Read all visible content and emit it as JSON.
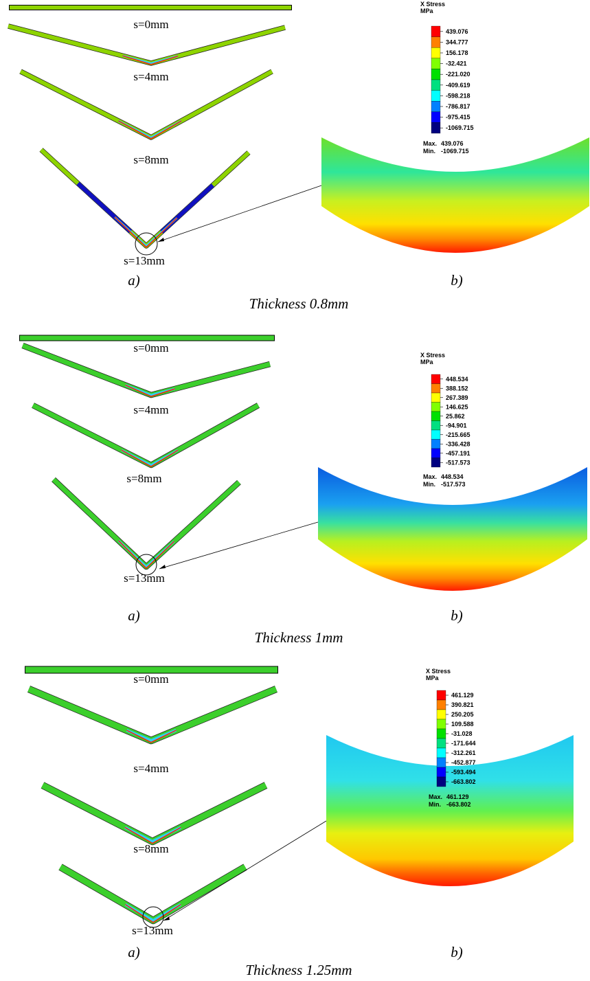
{
  "panels": [
    {
      "stages": [
        "s=0mm",
        "s=4mm",
        "s=8mm",
        "s=13mm"
      ],
      "label_a": "a)",
      "label_b": "b)",
      "caption": "Thickness 0.8mm",
      "legend": {
        "title": "X Stress",
        "unit": "MPa",
        "values": [
          "439.076",
          "344.777",
          "156.178",
          "-32.421",
          "-221.020",
          "-409.619",
          "-598.218",
          "-786.817",
          "-975.415",
          "-1069.715"
        ],
        "max_label": "Max.",
        "max": "439.076",
        "min_label": "Min.",
        "min": "-1069.715"
      }
    },
    {
      "stages": [
        "s=0mm",
        "s=4mm",
        "s=8mm",
        "s=13mm"
      ],
      "label_a": "a)",
      "label_b": "b)",
      "caption": "Thickness 1mm",
      "legend": {
        "title": "X Stress",
        "unit": "MPa",
        "values": [
          "448.534",
          "388.152",
          "267.389",
          "146.625",
          "25.862",
          "-94.901",
          "-215.665",
          "-336.428",
          "-457.191",
          "-517.573"
        ],
        "max_label": "Max.",
        "max": "448.534",
        "min_label": "Min.",
        "min": "-517.573"
      }
    },
    {
      "stages": [
        "s=0mm",
        "s=4mm",
        "s=8mm",
        "s=13mm"
      ],
      "label_a": "a)",
      "label_b": "b)",
      "caption": "Thickness 1.25mm",
      "legend": {
        "title": "X Stress",
        "unit": "MPa",
        "values": [
          "461.129",
          "390.821",
          "250.205",
          "109.588",
          "-31.028",
          "-171.644",
          "-312.261",
          "-452.877",
          "-593.494",
          "-663.802"
        ],
        "max_label": "Max.",
        "max": "461.129",
        "min_label": "Min.",
        "min": "-663.802"
      }
    }
  ]
}
